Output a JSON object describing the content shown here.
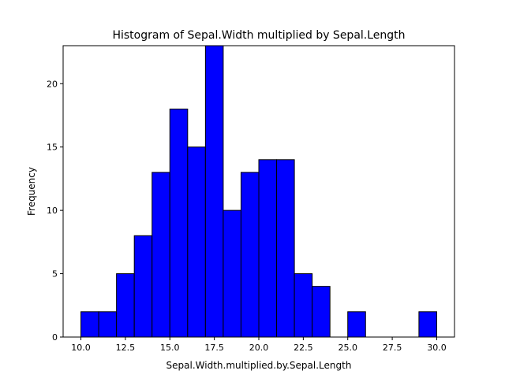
{
  "chart_data": {
    "type": "bar",
    "title": "Histogram of Sepal.Width multiplied by Sepal.Length",
    "xlabel": "Sepal.Width.multiplied.by.Sepal.Length",
    "ylabel": "Frequency",
    "xlim": [
      9,
      31
    ],
    "ylim": [
      0,
      23
    ],
    "x_ticks": [
      10.0,
      12.5,
      15.0,
      17.5,
      20.0,
      22.5,
      25.0,
      27.5,
      30.0
    ],
    "x_tick_labels": [
      "10.0",
      "12.5",
      "15.0",
      "17.5",
      "20.0",
      "22.5",
      "25.0",
      "27.5",
      "30.0"
    ],
    "y_ticks": [
      0,
      5,
      10,
      15,
      20
    ],
    "y_tick_labels": [
      "0",
      "5",
      "10",
      "15",
      "20"
    ],
    "bins": [
      {
        "start": 10,
        "end": 11,
        "count": 2
      },
      {
        "start": 11,
        "end": 12,
        "count": 2
      },
      {
        "start": 12,
        "end": 13,
        "count": 5
      },
      {
        "start": 13,
        "end": 14,
        "count": 8
      },
      {
        "start": 14,
        "end": 15,
        "count": 13
      },
      {
        "start": 15,
        "end": 16,
        "count": 18
      },
      {
        "start": 16,
        "end": 17,
        "count": 15
      },
      {
        "start": 17,
        "end": 18,
        "count": 23
      },
      {
        "start": 18,
        "end": 19,
        "count": 10
      },
      {
        "start": 19,
        "end": 20,
        "count": 13
      },
      {
        "start": 20,
        "end": 21,
        "count": 14
      },
      {
        "start": 21,
        "end": 22,
        "count": 14
      },
      {
        "start": 22,
        "end": 23,
        "count": 5
      },
      {
        "start": 23,
        "end": 24,
        "count": 4
      },
      {
        "start": 24,
        "end": 25,
        "count": 0
      },
      {
        "start": 25,
        "end": 26,
        "count": 2
      },
      {
        "start": 26,
        "end": 27,
        "count": 0
      },
      {
        "start": 27,
        "end": 28,
        "count": 0
      },
      {
        "start": 28,
        "end": 29,
        "count": 0
      },
      {
        "start": 29,
        "end": 30,
        "count": 2
      }
    ],
    "bar_color": "#0000ff",
    "edge_color": "#000000",
    "grid": false
  }
}
